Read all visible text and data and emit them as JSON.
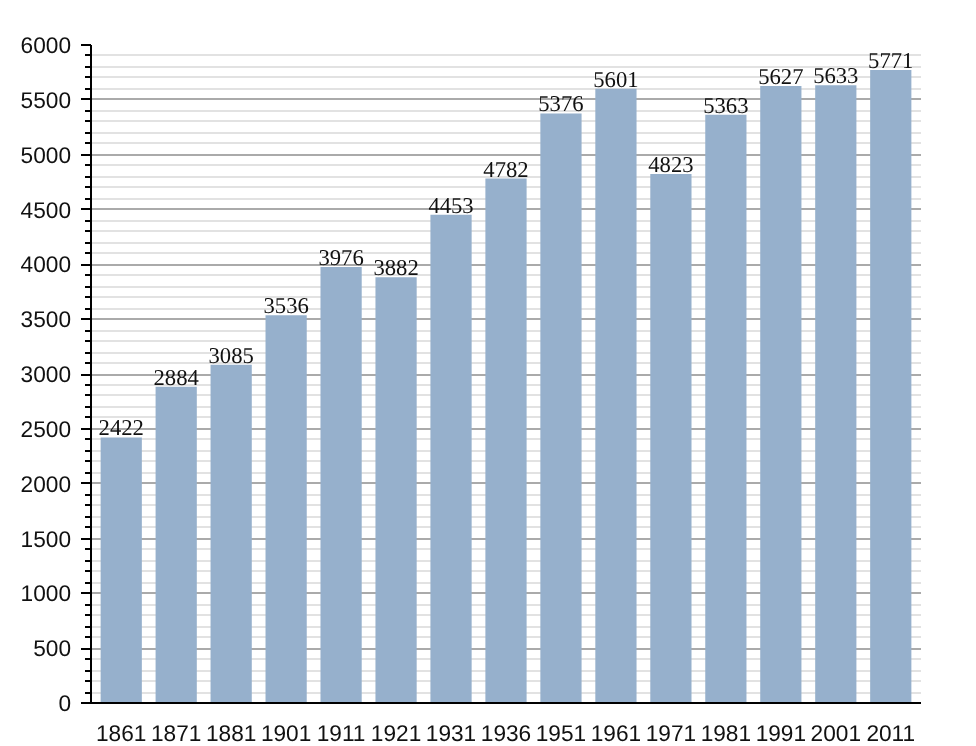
{
  "chart_data": {
    "type": "bar",
    "categories": [
      "1861",
      "1871",
      "1881",
      "1901",
      "1911",
      "1921",
      "1931",
      "1936",
      "1951",
      "1961",
      "1971",
      "1981",
      "1991",
      "2001",
      "2011"
    ],
    "values": [
      2422,
      2884,
      3085,
      3536,
      3976,
      3882,
      4453,
      4782,
      5376,
      5601,
      4823,
      5363,
      5627,
      5633,
      5771
    ],
    "color": "#96b0cc",
    "ylim": [
      0,
      6000
    ],
    "yticks": [
      0,
      500,
      1000,
      1500,
      2000,
      2500,
      3000,
      3500,
      4000,
      4500,
      5000,
      5500,
      6000
    ],
    "grid": "y",
    "data_labels": true
  }
}
